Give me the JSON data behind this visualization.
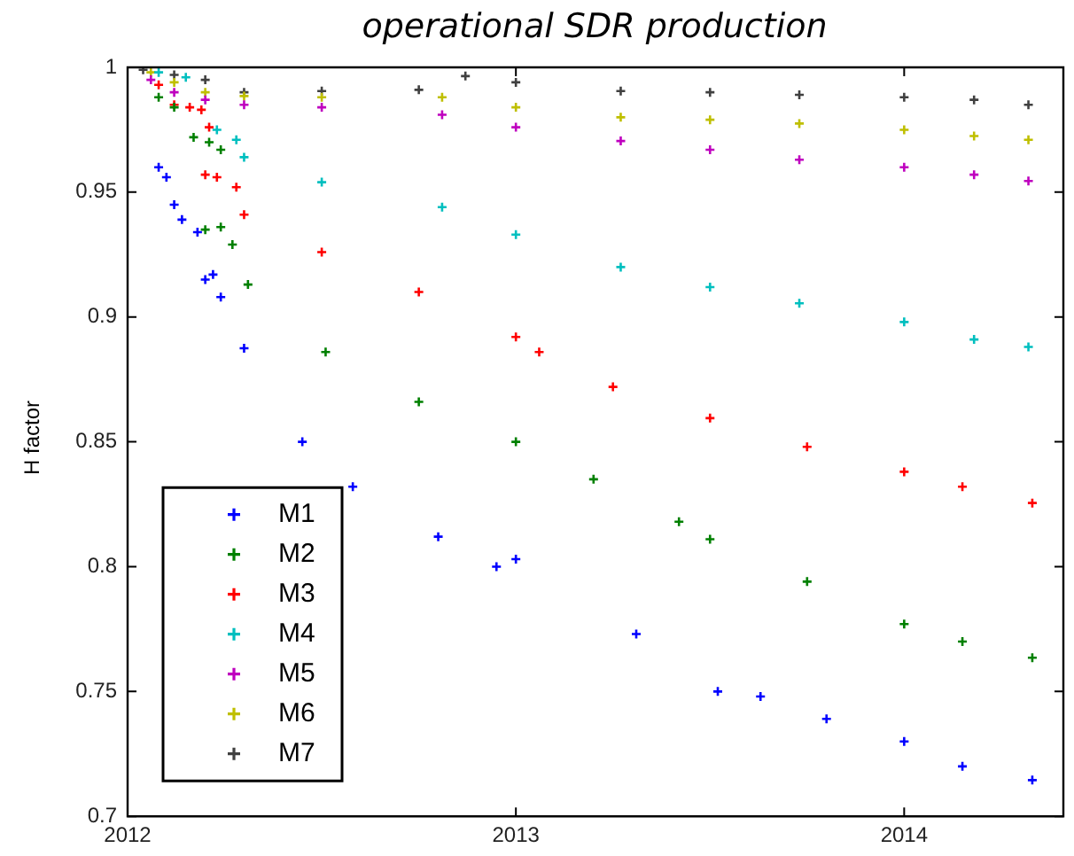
{
  "chart_data": {
    "type": "scatter",
    "title": "operational SDR production",
    "ylabel": "H factor",
    "xlim": [
      2012,
      2014.41
    ],
    "xticks": [
      2012,
      2013,
      2014
    ],
    "ylim": [
      0.7,
      1
    ],
    "yticks": [
      0.7,
      0.75,
      0.8,
      0.85,
      0.9,
      0.95,
      1
    ],
    "grid": false,
    "legend": "bottom left",
    "marker": "cross",
    "series": [
      {
        "name": "M1",
        "color": "#0000ff",
        "x": [
          2012.08,
          2012.1,
          2012.12,
          2012.14,
          2012.18,
          2012.2,
          2012.22,
          2012.24,
          2012.3,
          2012.45,
          2012.58,
          2012.8,
          2012.95,
          2013.0,
          2013.31,
          2013.52,
          2013.63,
          2013.8,
          2014.0,
          2014.15,
          2014.33
        ],
        "values": [
          0.96,
          0.956,
          0.945,
          0.939,
          0.934,
          0.915,
          0.917,
          0.908,
          0.8875,
          0.85,
          0.832,
          0.812,
          0.8,
          0.803,
          0.773,
          0.75,
          0.748,
          0.739,
          0.73,
          0.72,
          0.7145
        ]
      },
      {
        "name": "M2",
        "color": "#008000",
        "x": [
          2012.08,
          2012.12,
          2012.17,
          2012.21,
          2012.24,
          2012.2,
          2012.24,
          2012.27,
          2012.31,
          2012.51,
          2012.75,
          2013.0,
          2013.2,
          2013.42,
          2013.5,
          2013.75,
          2014.0,
          2014.15,
          2014.33
        ],
        "values": [
          0.988,
          0.984,
          0.972,
          0.97,
          0.967,
          0.935,
          0.936,
          0.929,
          0.913,
          0.886,
          0.866,
          0.85,
          0.835,
          0.818,
          0.811,
          0.794,
          0.777,
          0.77,
          0.7635
        ]
      },
      {
        "name": "M3",
        "color": "#ff0000",
        "x": [
          2012.08,
          2012.12,
          2012.16,
          2012.19,
          2012.21,
          2012.2,
          2012.23,
          2012.28,
          2012.3,
          2012.5,
          2012.75,
          2013.0,
          2013.06,
          2013.25,
          2013.5,
          2013.75,
          2014.0,
          2014.15,
          2014.33
        ],
        "values": [
          0.993,
          0.985,
          0.984,
          0.983,
          0.976,
          0.957,
          0.956,
          0.952,
          0.941,
          0.926,
          0.91,
          0.892,
          0.886,
          0.872,
          0.8595,
          0.848,
          0.838,
          0.832,
          0.8255
        ]
      },
      {
        "name": "M4",
        "color": "#00bfbf",
        "x": [
          2012.08,
          2012.15,
          2012.23,
          2012.28,
          2012.3,
          2012.5,
          2012.81,
          2013.0,
          2013.27,
          2013.5,
          2013.73,
          2014.0,
          2014.18,
          2014.32
        ],
        "values": [
          0.998,
          0.996,
          0.975,
          0.971,
          0.964,
          0.954,
          0.944,
          0.933,
          0.92,
          0.912,
          0.9055,
          0.898,
          0.891,
          0.888
        ]
      },
      {
        "name": "M5",
        "color": "#bf00bf",
        "x": [
          2012.06,
          2012.12,
          2012.2,
          2012.3,
          2012.5,
          2012.81,
          2013.0,
          2013.27,
          2013.5,
          2013.73,
          2014.0,
          2014.18,
          2014.32
        ],
        "values": [
          0.995,
          0.99,
          0.987,
          0.985,
          0.984,
          0.981,
          0.976,
          0.9705,
          0.967,
          0.963,
          0.96,
          0.957,
          0.9545
        ]
      },
      {
        "name": "M6",
        "color": "#bfbf00",
        "x": [
          2012.06,
          2012.12,
          2012.2,
          2012.3,
          2012.5,
          2012.81,
          2013.0,
          2013.27,
          2013.5,
          2013.73,
          2014.0,
          2014.18,
          2014.32
        ],
        "values": [
          0.998,
          0.994,
          0.99,
          0.9885,
          0.988,
          0.988,
          0.984,
          0.98,
          0.979,
          0.9775,
          0.975,
          0.9725,
          0.971
        ]
      },
      {
        "name": "M7",
        "color": "#404040",
        "x": [
          2012.04,
          2012.12,
          2012.2,
          2012.3,
          2012.5,
          2012.75,
          2012.87,
          2013.0,
          2013.27,
          2013.5,
          2013.73,
          2014.0,
          2014.18,
          2014.32
        ],
        "values": [
          0.999,
          0.997,
          0.995,
          0.99,
          0.9905,
          0.991,
          0.9965,
          0.994,
          0.9905,
          0.99,
          0.989,
          0.988,
          0.987,
          0.985
        ]
      }
    ]
  }
}
